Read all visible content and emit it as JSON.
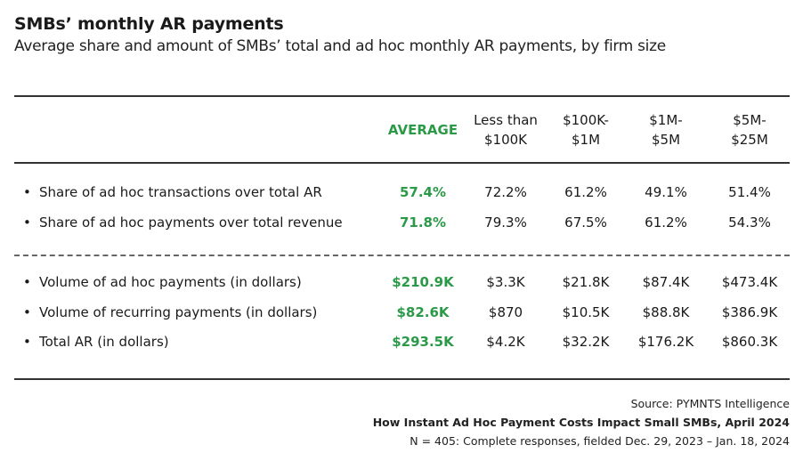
{
  "title": "SMBs’ monthly AR payments",
  "subtitle": "Average share and amount of SMBs’ total and ad hoc monthly AR payments, by firm size",
  "headers": {
    "average": "AVERAGE",
    "cols": [
      [
        "Less than",
        "$100K"
      ],
      [
        "$100K-",
        "$1M"
      ],
      [
        "$1M-",
        "$5M"
      ],
      [
        "$5M-",
        "$25M"
      ]
    ]
  },
  "bullet": "•",
  "chart_data": {
    "type": "table",
    "title": "SMBs’ monthly AR payments",
    "columns": [
      "AVERAGE",
      "Less than $100K",
      "$100K- $1M",
      "$1M- $5M",
      "$5M- $25M"
    ],
    "groups": [
      {
        "rows": [
          {
            "label": "Share of ad hoc transactions over total AR",
            "average": "57.4%",
            "values": [
              "72.2%",
              "61.2%",
              "49.1%",
              "51.4%"
            ]
          },
          {
            "label": "Share of ad hoc payments over total revenue",
            "average": "71.8%",
            "values": [
              "79.3%",
              "67.5%",
              "61.2%",
              "54.3%"
            ]
          }
        ]
      },
      {
        "rows": [
          {
            "label": "Volume of ad hoc payments (in dollars)",
            "average": "$210.9K",
            "values": [
              "$3.3K",
              "$21.8K",
              "$87.4K",
              "$473.4K"
            ]
          },
          {
            "label": "Volume of recurring payments (in dollars)",
            "average": "$82.6K",
            "values": [
              "$870",
              "$10.5K",
              "$88.8K",
              "$386.9K"
            ]
          },
          {
            "label": "Total AR (in dollars)",
            "average": "$293.5K",
            "values": [
              "$4.2K",
              "$32.2K",
              "$176.2K",
              "$860.3K"
            ]
          }
        ]
      }
    ]
  },
  "footer": {
    "source": "Source: PYMNTS Intelligence",
    "report": "How Instant Ad Hoc Payment Costs Impact Small SMBs, April 2024",
    "sample": "N = 405: Complete responses, fielded Dec. 29, 2023 – Jan. 18, 2024"
  }
}
